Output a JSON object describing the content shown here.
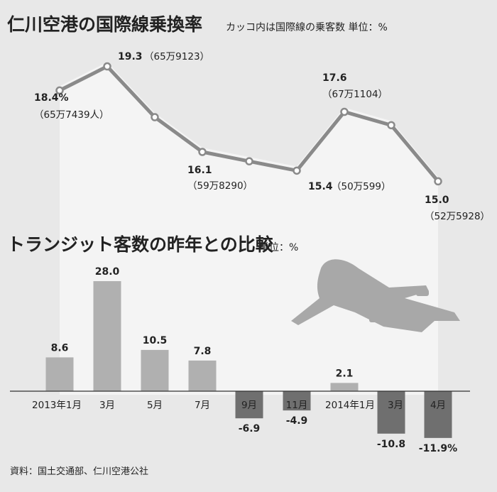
{
  "chart_data": [
    {
      "type": "line",
      "title": "仁川空港の国際線乗換率",
      "subtitle": "カッコ内は国際線の乗客数 単位：%",
      "ylim": [
        14,
        20
      ],
      "points": [
        {
          "x": "2013年1月",
          "value": 18.4,
          "label": "18.4%",
          "detail": "（65万7439人）"
        },
        {
          "x": "3月",
          "value": 19.3,
          "label": "19.3",
          "detail": "（65万9123）"
        },
        {
          "x": "5月",
          "value": 17.4,
          "label": "",
          "detail": ""
        },
        {
          "x": "7月",
          "value": 16.1,
          "label": "16.1",
          "detail": "（59万8290）"
        },
        {
          "x": "9月",
          "value": 15.75,
          "label": "",
          "detail": ""
        },
        {
          "x": "11月",
          "value": 15.4,
          "label": "15.4",
          "detail": "（50万599）"
        },
        {
          "x": "2014年1月",
          "value": 17.6,
          "label": "17.6",
          "detail": "（67万1104）"
        },
        {
          "x": "3月",
          "value": 17.1,
          "label": "",
          "detail": ""
        },
        {
          "x": "4月",
          "value": 15.0,
          "label": "15.0",
          "detail": "（52万5928）"
        }
      ],
      "line_color": "#8a8a8a",
      "marker_fill": "#ffffff"
    },
    {
      "type": "bar",
      "title": "トランジット客数の昨年との比較",
      "subtitle": "単位：%",
      "categories": [
        "2013年1月",
        "3月",
        "5月",
        "7月",
        "9月",
        "11月",
        "2014年1月",
        "3月",
        "4月"
      ],
      "values": [
        8.6,
        28.0,
        10.5,
        7.8,
        -6.9,
        -4.9,
        2.1,
        -10.8,
        -11.9
      ],
      "labels": [
        "8.6",
        "28.0",
        "10.5",
        "7.8",
        "-6.9",
        "-4.9",
        "2.1",
        "-10.8",
        "-11.9%"
      ],
      "ylim": [
        -13,
        30
      ],
      "positive_color": "#b0b0b0",
      "negative_color": "#6f6f6f"
    }
  ],
  "source": "資料：国土交通部、仁川空港公社",
  "icons": {
    "plane": "airplane-icon"
  },
  "colors": {
    "background": "#e8e8e8",
    "panel": "#f4f4f4",
    "text": "#222222"
  }
}
